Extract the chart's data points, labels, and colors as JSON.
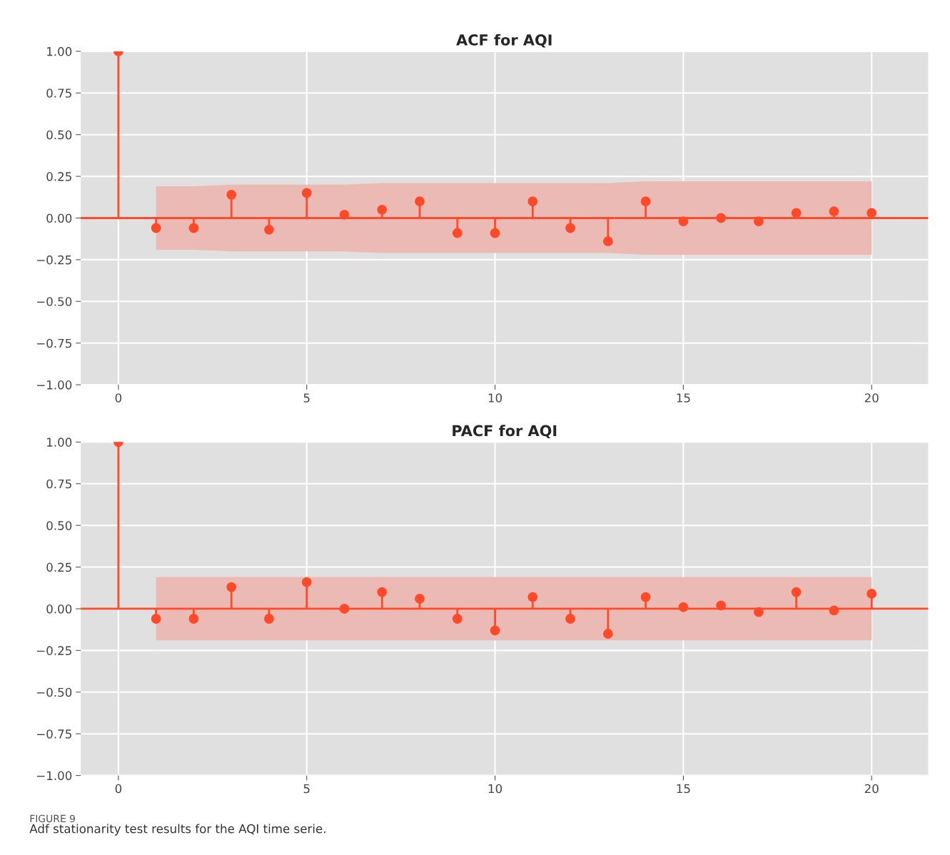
{
  "chart_data": [
    {
      "type": "lollipop",
      "title": "ACF for AQI",
      "ref_lines": [
        {
          "axis": "y",
          "value": 0,
          "color": "#ff4a2a"
        }
      ],
      "x": [
        0,
        1,
        2,
        3,
        4,
        5,
        6,
        7,
        8,
        9,
        10,
        11,
        12,
        13,
        14,
        15,
        16,
        17,
        18,
        19,
        20
      ],
      "xlim": [
        -1,
        21.5
      ],
      "xticks": [
        0,
        5,
        10,
        15,
        20
      ],
      "ylim": [
        -1,
        1
      ],
      "yticks": [
        {
          "value": -1,
          "label": "−1.00"
        },
        {
          "value": -0.75,
          "label": "−0.75"
        },
        {
          "value": -0.5,
          "label": "−0.50"
        },
        {
          "value": -0.25,
          "label": "−0.25"
        },
        {
          "value": 0,
          "label": "0.00"
        },
        {
          "value": 0.25,
          "label": "0.25"
        },
        {
          "value": 0.5,
          "label": "0.50"
        },
        {
          "value": 0.75,
          "label": "0.75"
        },
        {
          "value": 1,
          "label": "1.00"
        }
      ],
      "grid": true,
      "marker": "circle",
      "series": [
        {
          "color": "#ff4a2a",
          "values": [
            1,
            -0.06,
            -0.06,
            0.14,
            -0.07,
            0.15,
            0.02,
            0.05,
            0.1,
            -0.09,
            -0.09,
            0.1,
            -0.06,
            -0.14,
            0.1,
            -0.02,
            0.0,
            -0.02,
            0.03,
            0.04,
            0.03
          ],
          "lower": [
            null,
            -0.19,
            -0.19,
            -0.2,
            -0.2,
            -0.2,
            -0.2,
            -0.21,
            -0.21,
            -0.21,
            -0.21,
            -0.21,
            -0.21,
            -0.21,
            -0.22,
            -0.22,
            -0.22,
            -0.22,
            -0.22,
            -0.22,
            -0.22
          ],
          "upper": [
            null,
            0.19,
            0.19,
            0.2,
            0.2,
            0.2,
            0.2,
            0.21,
            0.21,
            0.21,
            0.21,
            0.21,
            0.21,
            0.21,
            0.22,
            0.22,
            0.22,
            0.22,
            0.22,
            0.22,
            0.22
          ]
        }
      ]
    },
    {
      "type": "lollipop",
      "title": "PACF for AQI",
      "ref_lines": [
        {
          "axis": "y",
          "value": 0,
          "color": "#ff4a2a"
        }
      ],
      "x": [
        0,
        1,
        2,
        3,
        4,
        5,
        6,
        7,
        8,
        9,
        10,
        11,
        12,
        13,
        14,
        15,
        16,
        17,
        18,
        19,
        20
      ],
      "xlim": [
        -1,
        21.5
      ],
      "xticks": [
        0,
        5,
        10,
        15,
        20
      ],
      "ylim": [
        -1,
        1
      ],
      "yticks": [
        {
          "value": -1,
          "label": "−1.00"
        },
        {
          "value": -0.75,
          "label": "−0.75"
        },
        {
          "value": -0.5,
          "label": "−0.50"
        },
        {
          "value": -0.25,
          "label": "−0.25"
        },
        {
          "value": 0,
          "label": "0.00"
        },
        {
          "value": 0.25,
          "label": "0.25"
        },
        {
          "value": 0.5,
          "label": "0.50"
        },
        {
          "value": 0.75,
          "label": "0.75"
        },
        {
          "value": 1,
          "label": "1.00"
        }
      ],
      "grid": true,
      "marker": "circle",
      "series": [
        {
          "color": "#ff4a2a",
          "values": [
            1,
            -0.06,
            -0.06,
            0.13,
            -0.06,
            0.16,
            0.0,
            0.1,
            0.06,
            -0.06,
            -0.13,
            0.07,
            -0.06,
            -0.15,
            0.07,
            0.01,
            0.02,
            -0.02,
            0.1,
            -0.01,
            0.09
          ],
          "lower": [
            null,
            -0.19,
            -0.19,
            -0.19,
            -0.19,
            -0.19,
            -0.19,
            -0.19,
            -0.19,
            -0.19,
            -0.19,
            -0.19,
            -0.19,
            -0.19,
            -0.19,
            -0.19,
            -0.19,
            -0.19,
            -0.19,
            -0.19,
            -0.19
          ],
          "upper": [
            null,
            0.19,
            0.19,
            0.19,
            0.19,
            0.19,
            0.19,
            0.19,
            0.19,
            0.19,
            0.19,
            0.19,
            0.19,
            0.19,
            0.19,
            0.19,
            0.19,
            0.19,
            0.19,
            0.19,
            0.19
          ]
        }
      ],
      "annotations": [
        "FIGURE 9",
        "Adf stationarity test results for the AQI time serie."
      ]
    }
  ]
}
